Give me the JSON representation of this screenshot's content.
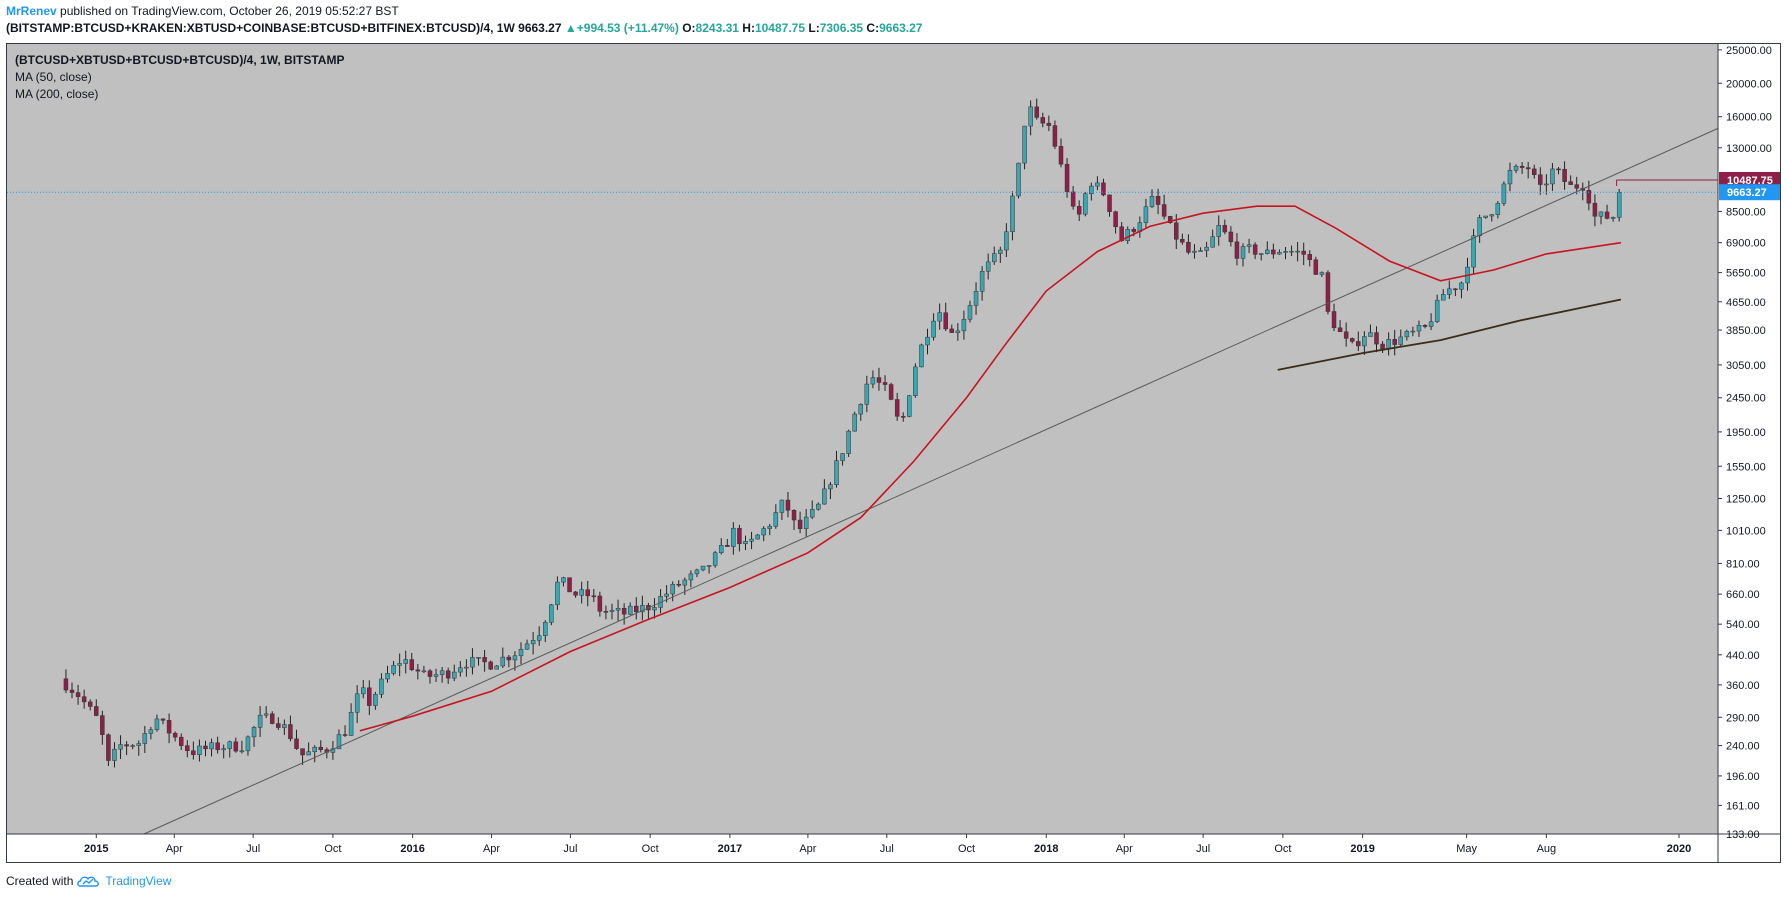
{
  "header": {
    "author": "MrRenev",
    "published": " published on TradingView.com, October 26, 2019 05:52:27 BST"
  },
  "symbol_bar": {
    "symbol": "(BITSTAMP:BTCUSD+KRAKEN:XBTUSD+COINBASE:BTCUSD+BITFINEX:BTCUSD)/4, 1W",
    "price": "9663.27",
    "change": "+994.53 (+11.47%)",
    "o_label": "O:",
    "o": "8243.31",
    "h_label": "H:",
    "h": "10487.75",
    "l_label": "L:",
    "l": "7306.35",
    "c_label": "C:",
    "c": "9663.27"
  },
  "legend": {
    "symbol": "(BTCUSD+XBTUSD+BTCUSD+BTCUSD)/4, 1W, BITSTAMP",
    "ma50": "MA (50, close)",
    "ma200": "MA (200, close)"
  },
  "footer": {
    "created_with": "Created with",
    "brand": "TradingView",
    "logo_icon": "tradingview-cloud-icon"
  },
  "colors": {
    "background": "#c0c0c0",
    "up": "#3aa6b2",
    "down": "#8e1f48",
    "ma50": "#c8141e",
    "ma200": "#3a2d15",
    "trendline": "#5a5a5a",
    "last_price": "#2196f3",
    "high_price": "#8e1f48"
  },
  "chart_data": {
    "type": "candlestick",
    "timeframe": "1W",
    "y_scale": "log",
    "yticks": [
      133,
      161,
      196,
      240,
      290,
      360,
      440,
      540,
      660,
      810,
      1010,
      1250,
      1550,
      1950,
      2450,
      3050,
      3850,
      4650,
      5650,
      6900,
      8500,
      13000,
      16000,
      20000,
      25000
    ],
    "ytick_labels": [
      "133.00",
      "161.00",
      "196.00",
      "240.00",
      "290.00",
      "360.00",
      "440.00",
      "540.00",
      "660.00",
      "810.00",
      "1010.00",
      "1250.00",
      "1550.00",
      "1950.00",
      "2450.00",
      "3050.00",
      "3850.00",
      "4650.00",
      "5650.00",
      "6900.00",
      "8500.00",
      "13000.00",
      "16000.00",
      "20000.00",
      "25000.00"
    ],
    "ylim": [
      133,
      26000
    ],
    "xticks": [
      {
        "label": "2015",
        "date": "2015-01-01",
        "bold": true
      },
      {
        "label": "Apr",
        "date": "2015-04-01"
      },
      {
        "label": "Jul",
        "date": "2015-07-01"
      },
      {
        "label": "Oct",
        "date": "2015-10-01"
      },
      {
        "label": "2016",
        "date": "2016-01-01",
        "bold": true
      },
      {
        "label": "Apr",
        "date": "2016-04-01"
      },
      {
        "label": "Jul",
        "date": "2016-07-01"
      },
      {
        "label": "Oct",
        "date": "2016-10-01"
      },
      {
        "label": "2017",
        "date": "2017-01-01",
        "bold": true
      },
      {
        "label": "Apr",
        "date": "2017-04-01"
      },
      {
        "label": "Jul",
        "date": "2017-07-01"
      },
      {
        "label": "Oct",
        "date": "2017-10-01"
      },
      {
        "label": "2018",
        "date": "2018-01-01",
        "bold": true
      },
      {
        "label": "Apr",
        "date": "2018-04-01"
      },
      {
        "label": "Jul",
        "date": "2018-07-01"
      },
      {
        "label": "Oct",
        "date": "2018-10-01"
      },
      {
        "label": "2019",
        "date": "2019-01-01",
        "bold": true
      },
      {
        "label": "May",
        "date": "2019-05-01"
      },
      {
        "label": "Aug",
        "date": "2019-08-01"
      },
      {
        "label": "2020",
        "date": "2020-01-01",
        "bold": true
      }
    ],
    "xlim": [
      "2014-09-20",
      "2020-02-15"
    ],
    "price_path": [
      [
        "2014-11-20",
        375
      ],
      [
        "2014-12-10",
        340
      ],
      [
        "2015-01-05",
        280
      ],
      [
        "2015-01-14",
        210
      ],
      [
        "2015-01-28",
        240
      ],
      [
        "2015-02-20",
        245
      ],
      [
        "2015-03-10",
        290
      ],
      [
        "2015-04-01",
        255
      ],
      [
        "2015-04-20",
        230
      ],
      [
        "2015-05-20",
        238
      ],
      [
        "2015-06-20",
        240
      ],
      [
        "2015-07-08",
        285
      ],
      [
        "2015-07-25",
        290
      ],
      [
        "2015-08-10",
        265
      ],
      [
        "2015-08-25",
        225
      ],
      [
        "2015-09-25",
        235
      ],
      [
        "2015-10-15",
        265
      ],
      [
        "2015-11-02",
        350
      ],
      [
        "2015-11-12",
        320
      ],
      [
        "2015-12-01",
        380
      ],
      [
        "2015-12-20",
        430
      ],
      [
        "2016-01-15",
        380
      ],
      [
        "2016-02-10",
        390
      ],
      [
        "2016-03-01",
        420
      ],
      [
        "2016-04-01",
        415
      ],
      [
        "2016-05-01",
        450
      ],
      [
        "2016-05-28",
        520
      ],
      [
        "2016-06-18",
        730
      ],
      [
        "2016-07-05",
        660
      ],
      [
        "2016-07-25",
        655
      ],
      [
        "2016-08-05",
        590
      ],
      [
        "2016-09-01",
        580
      ],
      [
        "2016-10-01",
        610
      ],
      [
        "2016-11-01",
        700
      ],
      [
        "2016-12-01",
        770
      ],
      [
        "2016-12-25",
        900
      ],
      [
        "2017-01-05",
        1000
      ],
      [
        "2017-01-20",
        900
      ],
      [
        "2017-02-15",
        1050
      ],
      [
        "2017-03-05",
        1230
      ],
      [
        "2017-03-20",
        1000
      ],
      [
        "2017-04-15",
        1200
      ],
      [
        "2017-05-10",
        1700
      ],
      [
        "2017-05-25",
        2200
      ],
      [
        "2017-06-12",
        2850
      ],
      [
        "2017-07-01",
        2550
      ],
      [
        "2017-07-17",
        2000
      ],
      [
        "2017-08-05",
        3200
      ],
      [
        "2017-08-28",
        4500
      ],
      [
        "2017-09-15",
        3700
      ],
      [
        "2017-10-01",
        4350
      ],
      [
        "2017-10-20",
        5700
      ],
      [
        "2017-11-10",
        6500
      ],
      [
        "2017-11-28",
        10500
      ],
      [
        "2017-12-10",
        17500
      ],
      [
        "2017-12-20",
        15500
      ],
      [
        "2018-01-05",
        15000
      ],
      [
        "2018-01-20",
        11000
      ],
      [
        "2018-02-05",
        7800
      ],
      [
        "2018-02-20",
        10500
      ],
      [
        "2018-03-10",
        9500
      ],
      [
        "2018-03-28",
        7000
      ],
      [
        "2018-04-15",
        7800
      ],
      [
        "2018-05-05",
        9300
      ],
      [
        "2018-05-25",
        7500
      ],
      [
        "2018-06-15",
        6400
      ],
      [
        "2018-07-01",
        6300
      ],
      [
        "2018-07-20",
        7700
      ],
      [
        "2018-08-10",
        6400
      ],
      [
        "2018-08-25",
        6600
      ],
      [
        "2018-09-10",
        6400
      ],
      [
        "2018-10-01",
        6600
      ],
      [
        "2018-10-25",
        6400
      ],
      [
        "2018-11-15",
        5500
      ],
      [
        "2018-11-22",
        4300
      ],
      [
        "2018-12-05",
        3800
      ],
      [
        "2018-12-18",
        3400
      ],
      [
        "2019-01-05",
        3800
      ],
      [
        "2019-01-25",
        3500
      ],
      [
        "2019-02-15",
        3650
      ],
      [
        "2019-03-15",
        3900
      ],
      [
        "2019-04-05",
        4950
      ],
      [
        "2019-04-25",
        5300
      ],
      [
        "2019-05-15",
        7900
      ],
      [
        "2019-06-01",
        8700
      ],
      [
        "2019-06-20",
        11000
      ],
      [
        "2019-07-10",
        11500
      ],
      [
        "2019-07-25",
        9800
      ],
      [
        "2019-08-10",
        11300
      ],
      [
        "2019-08-28",
        10000
      ],
      [
        "2019-09-15",
        10200
      ],
      [
        "2019-09-25",
        8200
      ],
      [
        "2019-10-10",
        8200
      ],
      [
        "2019-10-20",
        8243
      ],
      [
        "2019-10-24",
        9663
      ]
    ],
    "ma50_path": [
      [
        "2015-11-01",
        265
      ],
      [
        "2016-01-01",
        292
      ],
      [
        "2016-04-01",
        345
      ],
      [
        "2016-07-01",
        450
      ],
      [
        "2016-10-01",
        560
      ],
      [
        "2017-01-01",
        690
      ],
      [
        "2017-04-01",
        870
      ],
      [
        "2017-06-01",
        1100
      ],
      [
        "2017-08-01",
        1600
      ],
      [
        "2017-10-01",
        2450
      ],
      [
        "2017-11-15",
        3500
      ],
      [
        "2018-01-01",
        5000
      ],
      [
        "2018-03-01",
        6500
      ],
      [
        "2018-05-01",
        7700
      ],
      [
        "2018-07-01",
        8400
      ],
      [
        "2018-09-01",
        8800
      ],
      [
        "2018-10-15",
        8800
      ],
      [
        "2018-12-01",
        7600
      ],
      [
        "2019-02-01",
        6100
      ],
      [
        "2019-04-01",
        5350
      ],
      [
        "2019-06-01",
        5750
      ],
      [
        "2019-08-01",
        6400
      ],
      [
        "2019-10-26",
        6900
      ]
    ],
    "ma200_path": [
      [
        "2018-09-25",
        2950
      ],
      [
        "2019-01-01",
        3300
      ],
      [
        "2019-04-01",
        3600
      ],
      [
        "2019-07-01",
        4100
      ],
      [
        "2019-10-26",
        4720
      ]
    ],
    "trendline": [
      [
        "2015-02-25",
        133
      ],
      [
        "2020-02-15",
        14800
      ]
    ],
    "horizontal_lines": [
      {
        "name": "high",
        "value": 10487.75,
        "label": "10487.75",
        "from": "2019-10-21"
      },
      {
        "name": "last",
        "value": 9663.27,
        "label": "9663.27",
        "dotted": true
      }
    ]
  }
}
